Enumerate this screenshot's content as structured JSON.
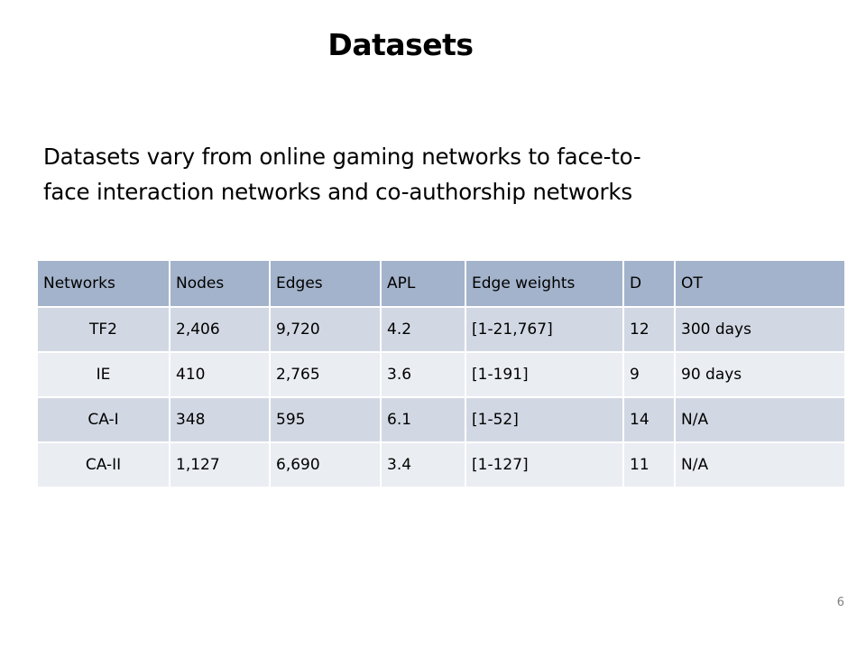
{
  "slide": {
    "title": "Datasets",
    "body_line1": "Datasets vary from online gaming networks to face-to-",
    "body_line2": "face interaction networks and co-authorship networks",
    "page_number": "6"
  },
  "table": {
    "headers": [
      "Networks",
      "Nodes",
      "Edges",
      "APL",
      "Edge weights",
      "D",
      "OT"
    ],
    "rows": [
      [
        "TF2",
        "2,406",
        "9,720",
        "4.2",
        "[1-21,767]",
        "12",
        "300 days"
      ],
      [
        "IE",
        "410",
        "2,765",
        "3.6",
        "[1-191]",
        "9",
        "90 days"
      ],
      [
        "CA-I",
        "348",
        "595",
        "6.1",
        "[1-52]",
        "14",
        "N/A"
      ],
      [
        "CA-II",
        "1,127",
        "6,690",
        "3.4",
        "[1-127]",
        "11",
        "N/A"
      ]
    ]
  },
  "colors": {
    "header_fill": "#a3b3cb",
    "row_fill_dark": "#d2d8e3",
    "row_fill_light": "#eaedf2",
    "page_number_text": "#7f7f7f"
  }
}
